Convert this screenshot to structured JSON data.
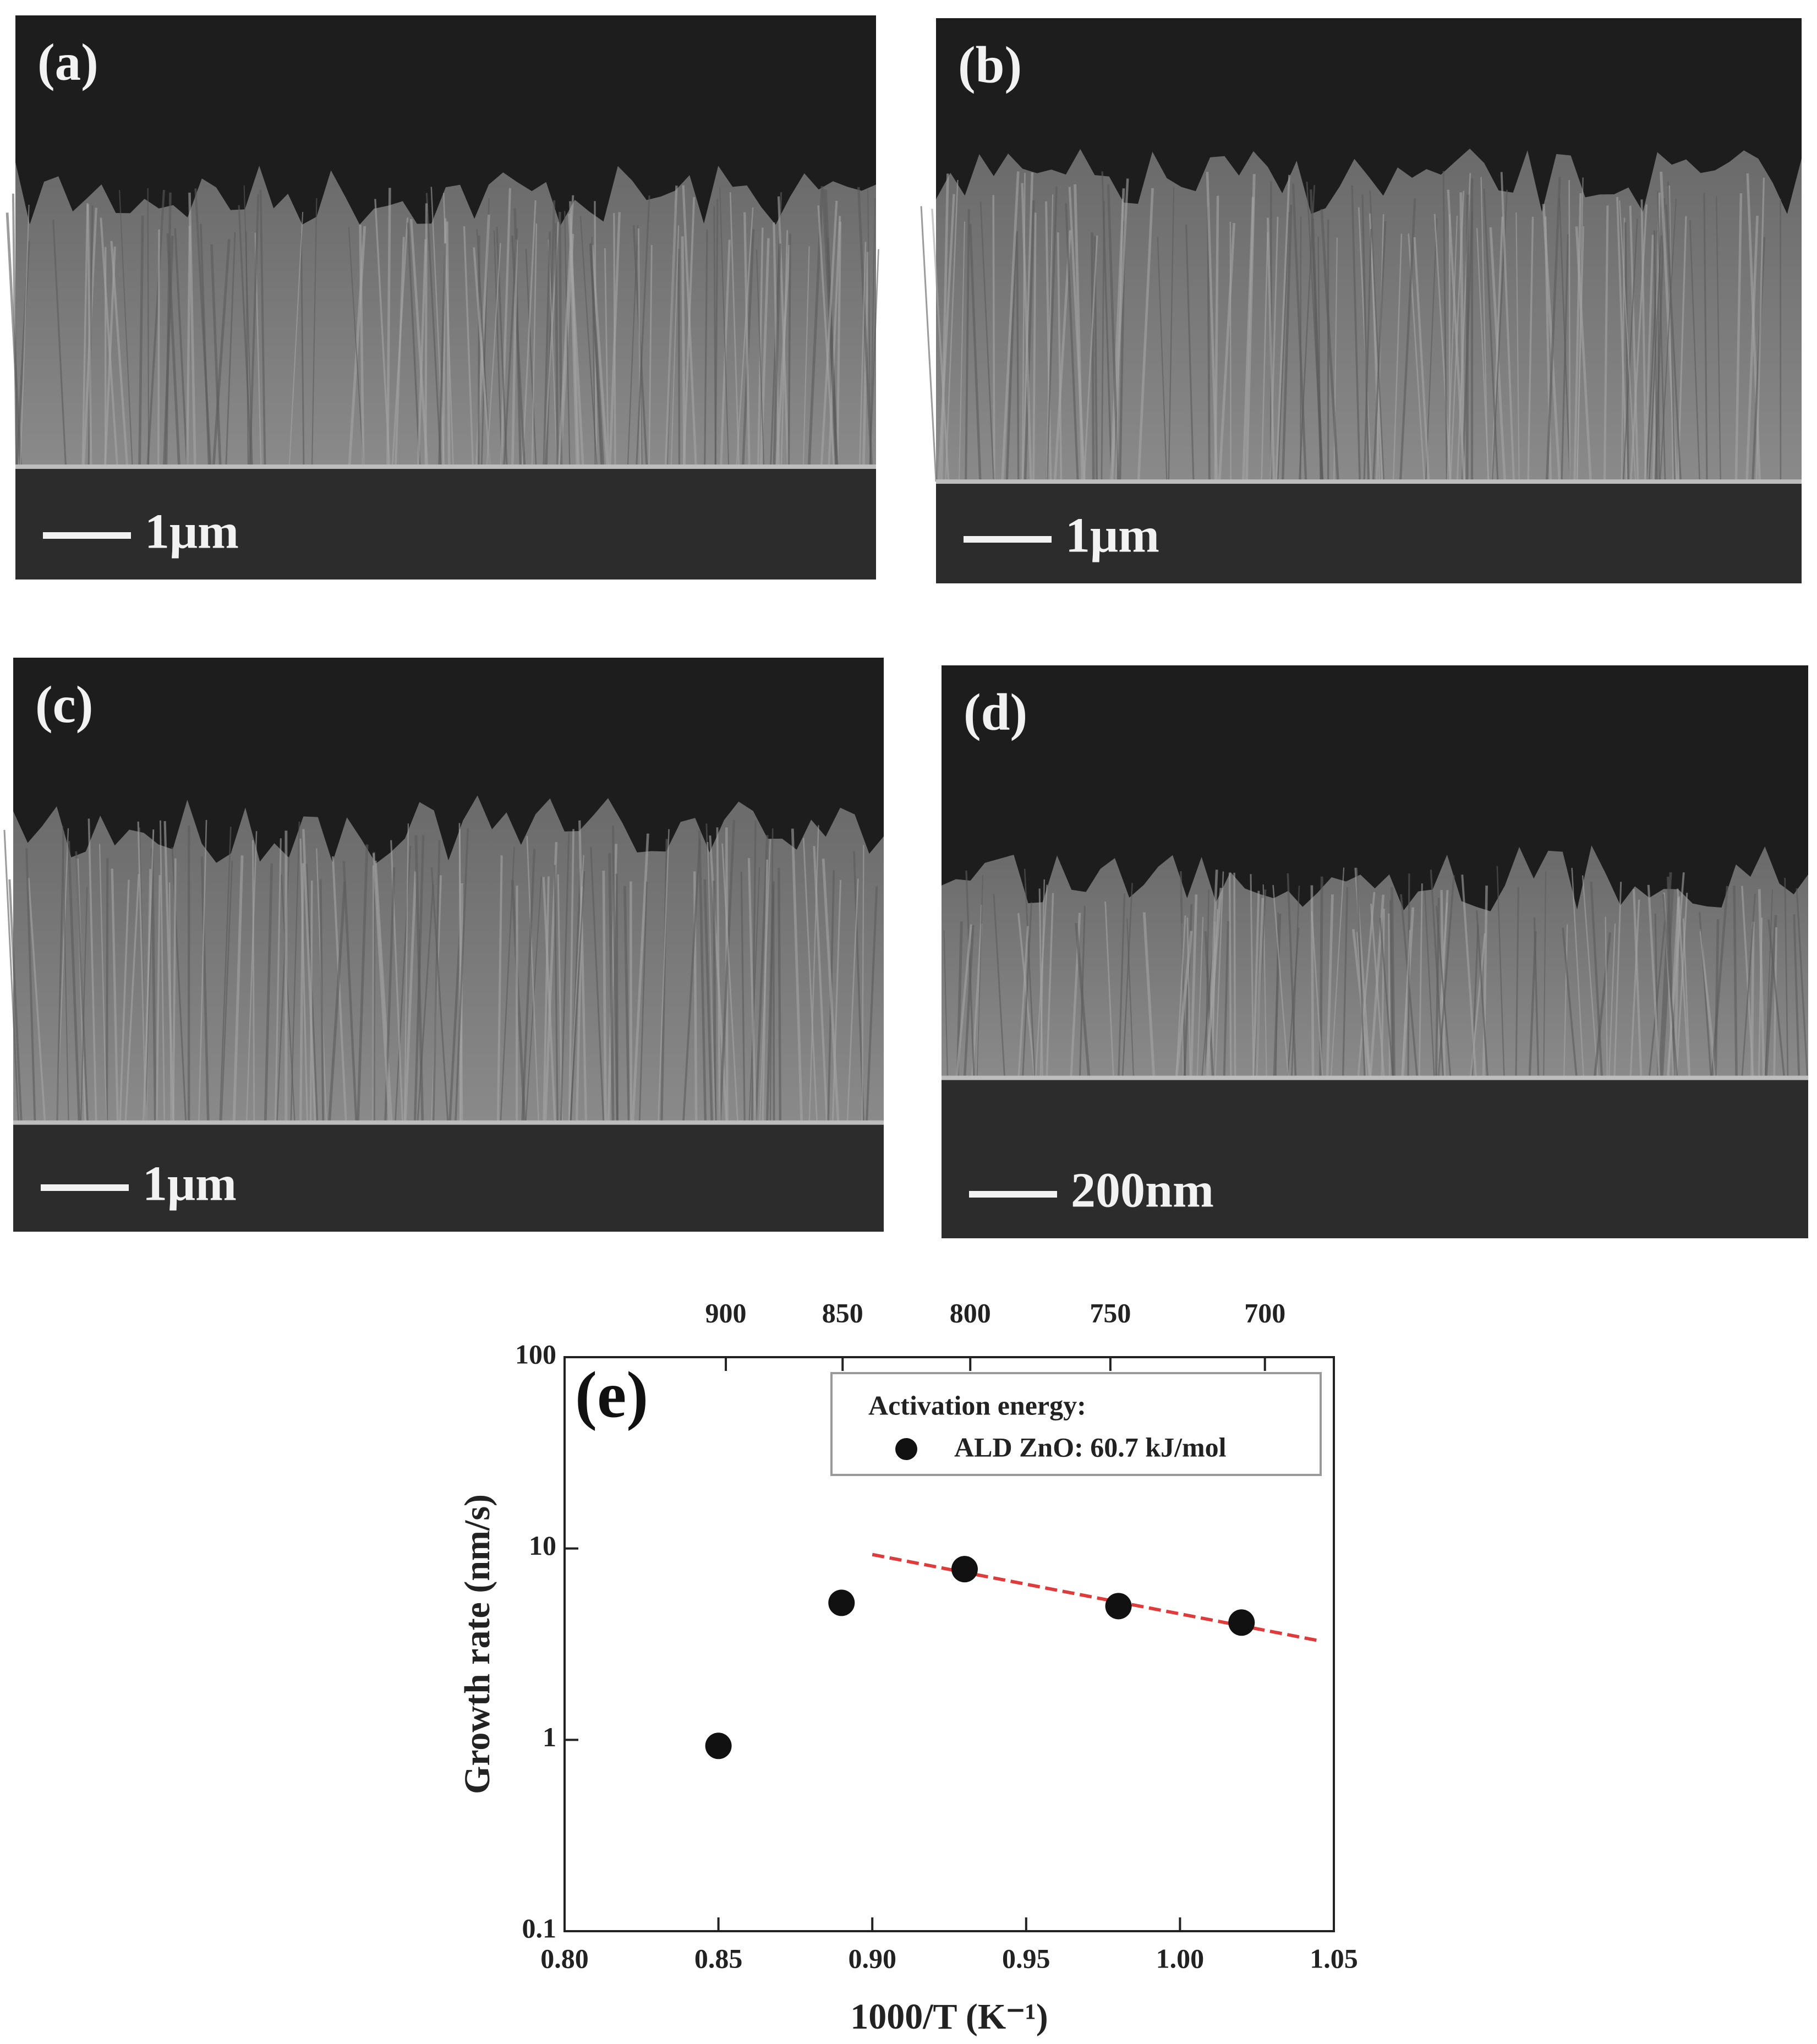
{
  "panels": [
    {
      "label": "(a)",
      "scale": "1μm"
    },
    {
      "label": "(b)",
      "scale": "1μm"
    },
    {
      "label": "(c)",
      "scale": "1μm"
    },
    {
      "label": "(d)",
      "scale": "200nm"
    }
  ],
  "chart_data": {
    "type": "scatter",
    "panel_label": "(e)",
    "xlabel": "1000/T (K⁻¹)",
    "ylabel": "Growth rate (nm/s)",
    "legend_title": "Activation energy:",
    "series": [
      {
        "name": "ALD ZnO: 60.7 kJ/mol",
        "color": "#111111",
        "x": [
          0.85,
          0.89,
          0.93,
          0.98,
          1.02
        ],
        "values": [
          0.93,
          5.2,
          7.8,
          5.0,
          4.1
        ]
      }
    ],
    "fit": {
      "x": [
        0.9,
        1.045
      ],
      "values": [
        9.3,
        3.3
      ],
      "color": "#e03a3a"
    },
    "xlim": [
      0.8,
      1.05
    ],
    "xticks": [
      {
        "value": 0.8,
        "label": "0.80"
      },
      0.85,
      {
        "value": 0.9,
        "label": "0.90"
      },
      0.95,
      {
        "value": 1.0,
        "label": "1.00"
      },
      1.05
    ],
    "x2ticks": [
      900,
      850,
      800,
      750,
      700
    ],
    "ylim": [
      0.1,
      100
    ],
    "yticks": [
      0.1,
      1,
      10,
      100
    ],
    "ylog": true,
    "grid": false
  }
}
